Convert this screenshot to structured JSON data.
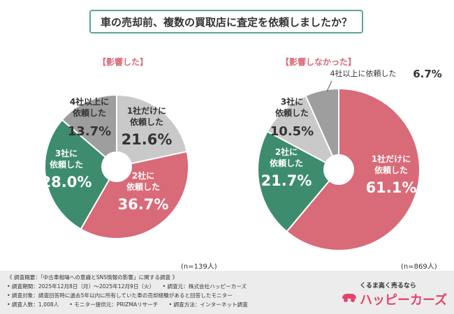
{
  "header": {
    "title": "車の売却前、複数の買取店に査定を依頼しましたか？"
  },
  "colors": {
    "gray": "#c9c9c9",
    "pink": "#d96a78",
    "green": "#3e8c6e",
    "dark": "#333333",
    "accent": "#5aa78a"
  },
  "chart_data": [
    {
      "type": "pie",
      "title": "【影響した】",
      "n_label": "(n=139人)",
      "slices": [
        {
          "label_lines": [
            "1社だけに",
            "依頼した"
          ],
          "value": 21.6,
          "value_label": "21.6%",
          "color": "#c9c9c9"
        },
        {
          "label_lines": [
            "2社に",
            "依頼した"
          ],
          "value": 36.7,
          "value_label": "36.7%",
          "color": "#d96a78"
        },
        {
          "label_lines": [
            "3社に",
            "依頼した"
          ],
          "value": 28.0,
          "value_label": "28.0%",
          "color": "#3e8c6e"
        },
        {
          "label_lines": [
            "4社以上に",
            "依頼した"
          ],
          "value": 13.7,
          "value_label": "13.7%",
          "color": "#9e9e9e"
        }
      ]
    },
    {
      "type": "pie",
      "title": "【影響しなかった】",
      "n_label": "(n=869人)",
      "slices": [
        {
          "label_lines": [
            "1社だけに",
            "依頼した"
          ],
          "value": 61.1,
          "value_label": "61.1%",
          "color": "#d96a78"
        },
        {
          "label_lines": [
            "2社に",
            "依頼した"
          ],
          "value": 21.7,
          "value_label": "21.7%",
          "color": "#3e8c6e"
        },
        {
          "label_lines": [
            "3社に",
            "依頼した"
          ],
          "value": 10.5,
          "value_label": "10.5%",
          "color": "#c9c9c9"
        },
        {
          "label_lines": [
            "4社以上に依頼した"
          ],
          "value": 6.7,
          "value_label": "6.7%",
          "color": "#9e9e9e"
        }
      ]
    }
  ],
  "footer": {
    "lines": [
      "《 調査概要：「中古車相場への意識とSNS情報の影響」に関する調査 》",
      "• 調査期間：2025年12月8日（月）〜2025年12月9日（火）　　• 調査元：株式会社ハッピーカーズ",
      "• 調査対象：調査回答時に過去5年以内に所有していた車の売却経験があると回答したモニター",
      "• 調査人数：1,008人　　• モニター提供元：PRIZMAリサーチ　　• 調査方法：インターネット調査"
    ]
  },
  "logo": {
    "tagline": "くるま高く売るなら",
    "brand": "ハッピーカーズ"
  }
}
